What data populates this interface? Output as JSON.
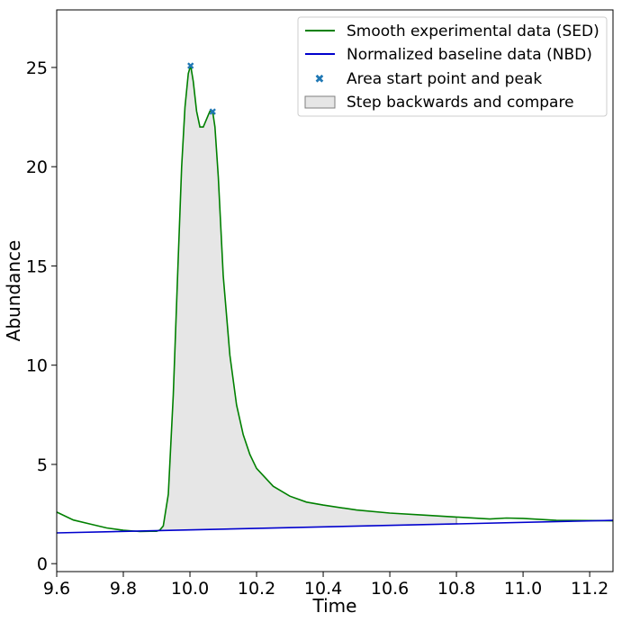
{
  "chart_data": {
    "type": "line",
    "title": "",
    "xlabel": "Time",
    "ylabel": "Abundance",
    "xlim": [
      9.6,
      11.27
    ],
    "ylim": [
      -0.4,
      27.9
    ],
    "xticks": [
      9.6,
      9.8,
      10.0,
      10.2,
      10.4,
      10.6,
      10.8,
      11.0,
      11.2
    ],
    "xtick_labels": [
      "9.6",
      "9.8",
      "10.0",
      "10.2",
      "10.4",
      "10.6",
      "10.8",
      "11.0",
      "11.2"
    ],
    "yticks": [
      0,
      5,
      10,
      15,
      20,
      25
    ],
    "ytick_labels": [
      "0",
      "5",
      "10",
      "15",
      "20",
      "25"
    ],
    "legend_position": "top-right",
    "series": [
      {
        "name": "Smooth experimental data (SED)",
        "color": "#008000",
        "x": [
          9.6,
          9.65,
          9.7,
          9.75,
          9.8,
          9.85,
          9.88,
          9.9,
          9.91,
          9.92,
          9.935,
          9.95,
          9.965,
          9.975,
          9.985,
          9.995,
          10.002,
          10.01,
          10.02,
          10.03,
          10.04,
          10.05,
          10.06,
          10.068,
          10.075,
          10.085,
          10.1,
          10.12,
          10.14,
          10.16,
          10.18,
          10.2,
          10.25,
          10.3,
          10.35,
          10.4,
          10.5,
          10.6,
          10.7,
          10.8,
          10.9,
          10.95,
          11.0,
          11.1,
          11.2,
          11.27
        ],
        "y": [
          2.6,
          2.2,
          2.0,
          1.8,
          1.68,
          1.62,
          1.63,
          1.63,
          1.7,
          1.9,
          3.5,
          8.5,
          15.5,
          20.0,
          23.0,
          24.7,
          25.1,
          24.3,
          22.8,
          22.0,
          22.0,
          22.4,
          22.8,
          22.8,
          22.0,
          19.5,
          14.5,
          10.5,
          8.0,
          6.5,
          5.5,
          4.8,
          3.9,
          3.4,
          3.1,
          2.95,
          2.7,
          2.55,
          2.45,
          2.35,
          2.25,
          2.3,
          2.28,
          2.18,
          2.17,
          2.16
        ]
      },
      {
        "name": "Normalized baseline data (NBD)",
        "color": "#0000cd",
        "x": [
          9.6,
          11.27
        ],
        "y": [
          1.55,
          2.18
        ]
      }
    ],
    "markers": {
      "name": "Area start point and peak",
      "color": "#1f77b4",
      "points": [
        {
          "x": 10.002,
          "y": 25.1
        },
        {
          "x": 10.068,
          "y": 22.8
        }
      ]
    },
    "fill": {
      "name": "Step backwards and compare",
      "color": "#e6e6e6",
      "edge": "#7f7f7f",
      "x_start": 9.88,
      "x_end": 10.8
    }
  }
}
